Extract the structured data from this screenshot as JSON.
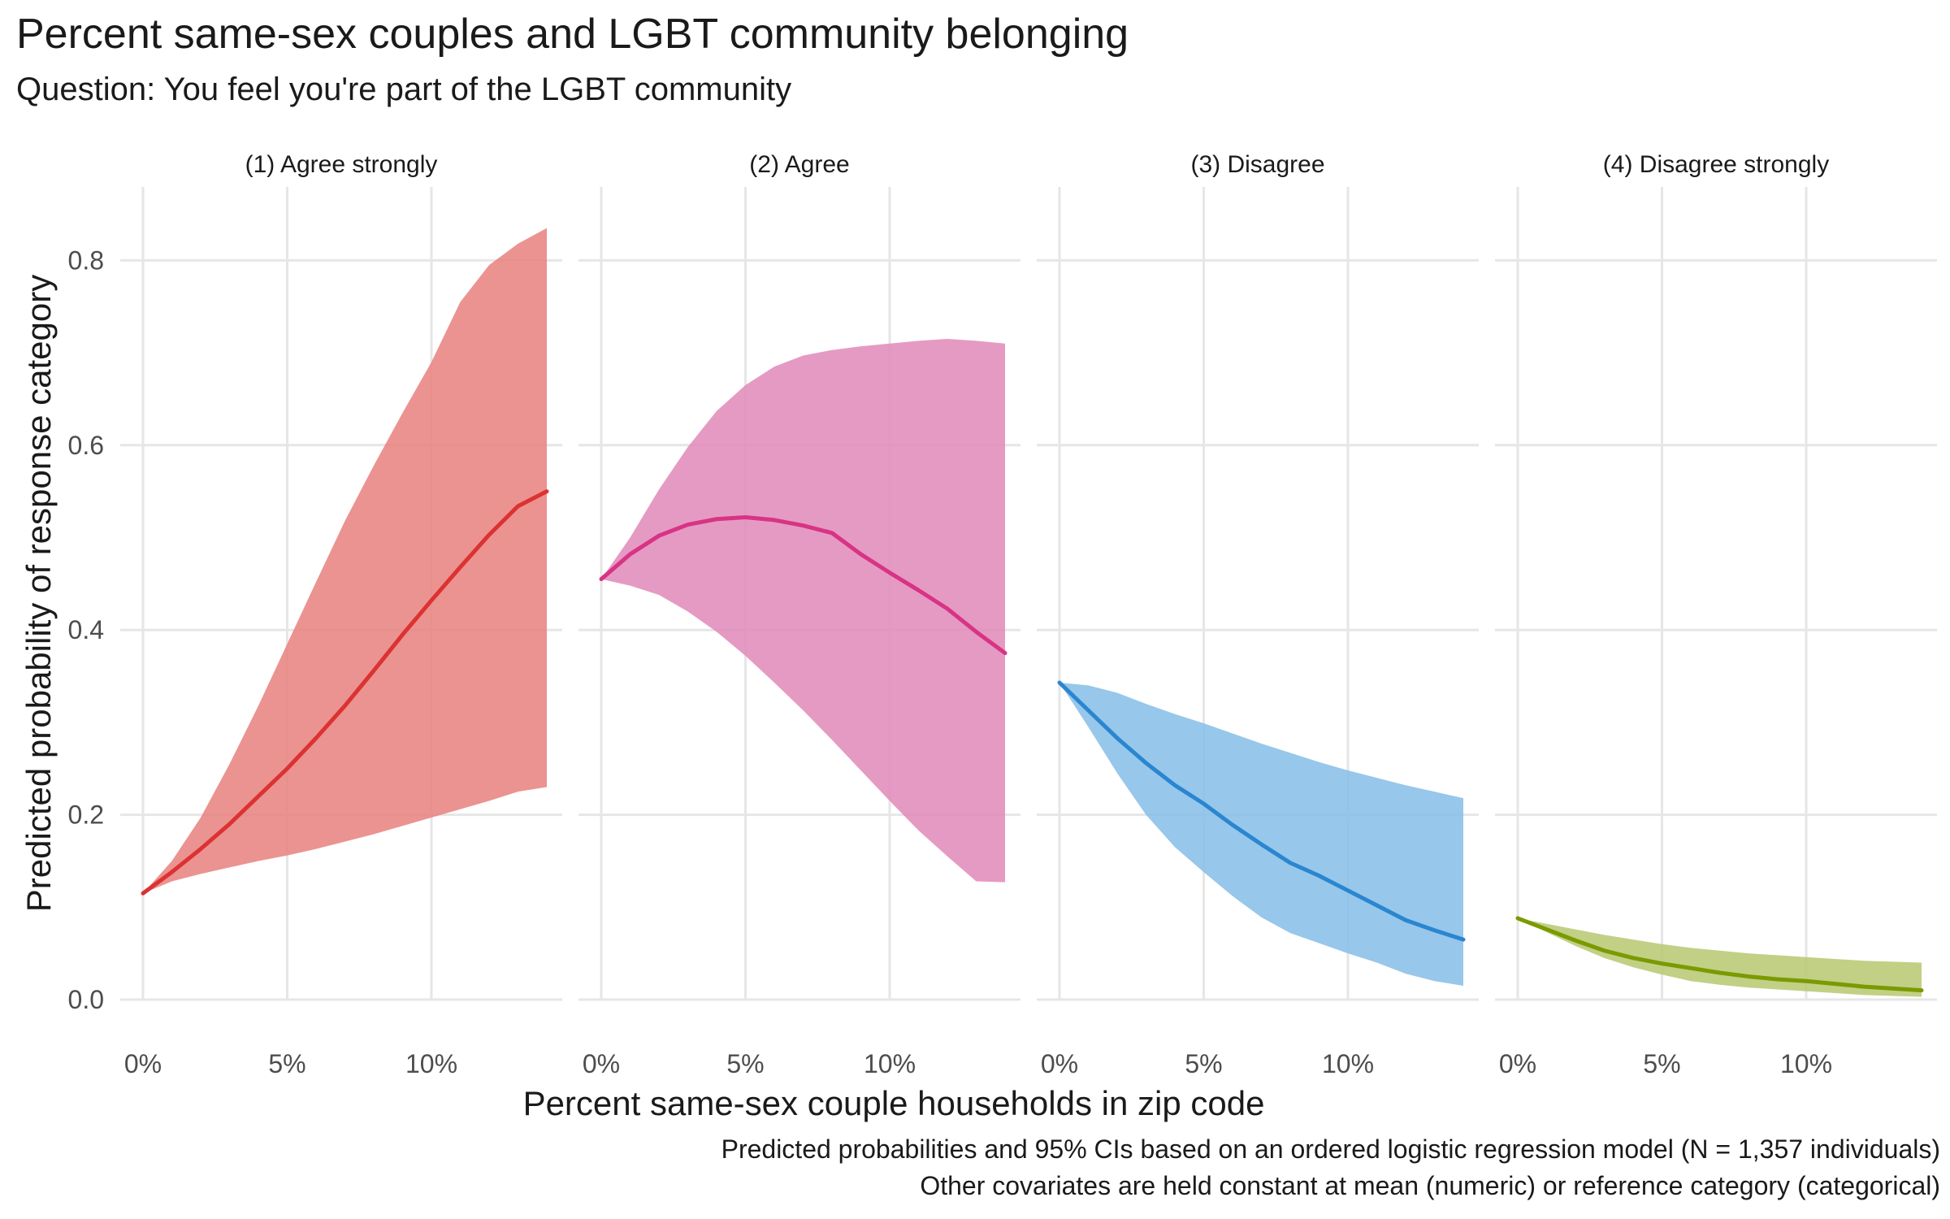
{
  "title": "Percent same-sex couples and LGBT community belonging",
  "subtitle": "Question: You feel you're part of the LGBT community",
  "caption": {
    "line1": "Predicted probabilities and 95% CIs based on an ordered logistic regression model (N = 1,357 individuals)",
    "line2": "Other covariates are held constant at mean (numeric) or reference category (categorical)"
  },
  "chart_data": {
    "type": "line",
    "subtype": "faceted line with confidence ribbons",
    "xlabel": "Percent same-sex couple households in zip code",
    "ylabel": "Predicted probability of response category",
    "xlim": [
      0,
      14
    ],
    "ylim": [
      0,
      0.85
    ],
    "x_ticks": [
      0,
      5,
      10
    ],
    "x_tick_labels": [
      "0%",
      "5%",
      "10%"
    ],
    "y_ticks": [
      0.0,
      0.2,
      0.4,
      0.6,
      0.8
    ],
    "y_tick_labels": [
      "0.0",
      "0.2",
      "0.4",
      "0.6",
      "0.8"
    ],
    "grid": true,
    "legend": "none",
    "facets": [
      {
        "label": "(1) Agree strongly",
        "line_color": "#dc3232",
        "band_color": "#e8807e",
        "x": [
          0,
          1,
          2,
          3,
          4,
          5,
          6,
          7,
          8,
          9,
          10,
          11,
          12,
          13,
          14
        ],
        "y": [
          0.115,
          0.138,
          0.163,
          0.19,
          0.22,
          0.25,
          0.283,
          0.318,
          0.356,
          0.395,
          0.432,
          0.468,
          0.503,
          0.534,
          0.55
        ],
        "lower": [
          0.115,
          0.128,
          0.136,
          0.143,
          0.15,
          0.156,
          0.163,
          0.171,
          0.179,
          0.188,
          0.197,
          0.206,
          0.215,
          0.225,
          0.23
        ],
        "upper": [
          0.115,
          0.15,
          0.197,
          0.255,
          0.318,
          0.385,
          0.452,
          0.518,
          0.578,
          0.635,
          0.69,
          0.755,
          0.795,
          0.818,
          0.835
        ]
      },
      {
        "label": "(2) Agree",
        "line_color": "#d83384",
        "band_color": "#e088b8",
        "x": [
          0,
          1,
          2,
          3,
          4,
          5,
          6,
          7,
          8,
          9,
          10,
          11,
          12,
          13,
          14
        ],
        "y": [
          0.455,
          0.482,
          0.502,
          0.514,
          0.52,
          0.522,
          0.519,
          0.513,
          0.505,
          0.482,
          0.462,
          0.443,
          0.423,
          0.398,
          0.375
        ],
        "lower": [
          0.455,
          0.448,
          0.438,
          0.42,
          0.398,
          0.372,
          0.343,
          0.313,
          0.281,
          0.248,
          0.215,
          0.183,
          0.155,
          0.128,
          0.127
        ],
        "upper": [
          0.455,
          0.5,
          0.552,
          0.598,
          0.637,
          0.665,
          0.685,
          0.697,
          0.703,
          0.707,
          0.71,
          0.713,
          0.715,
          0.713,
          0.71
        ]
      },
      {
        "label": "(3) Disagree",
        "line_color": "#2a86d0",
        "band_color": "#85bde6",
        "x": [
          0,
          1,
          2,
          3,
          4,
          5,
          6,
          7,
          8,
          9,
          10,
          11,
          12,
          13,
          14
        ],
        "y": [
          0.343,
          0.313,
          0.283,
          0.256,
          0.232,
          0.212,
          0.189,
          0.168,
          0.148,
          0.134,
          0.118,
          0.102,
          0.086,
          0.075,
          0.065
        ],
        "lower": [
          0.343,
          0.295,
          0.245,
          0.2,
          0.165,
          0.138,
          0.112,
          0.089,
          0.072,
          0.061,
          0.05,
          0.04,
          0.028,
          0.02,
          0.015
        ],
        "upper": [
          0.343,
          0.34,
          0.332,
          0.32,
          0.309,
          0.299,
          0.288,
          0.277,
          0.267,
          0.257,
          0.248,
          0.24,
          0.232,
          0.225,
          0.218
        ]
      },
      {
        "label": "(4) Disagree strongly",
        "line_color": "#7a9a00",
        "band_color": "#b6c870",
        "x": [
          0,
          1,
          2,
          3,
          4,
          5,
          6,
          7,
          8,
          9,
          10,
          11,
          12,
          13,
          14
        ],
        "y": [
          0.088,
          0.076,
          0.064,
          0.053,
          0.045,
          0.039,
          0.034,
          0.029,
          0.025,
          0.022,
          0.02,
          0.017,
          0.014,
          0.012,
          0.01
        ],
        "lower": [
          0.088,
          0.073,
          0.058,
          0.045,
          0.035,
          0.027,
          0.02,
          0.016,
          0.013,
          0.011,
          0.009,
          0.007,
          0.005,
          0.004,
          0.003
        ],
        "upper": [
          0.088,
          0.082,
          0.076,
          0.07,
          0.065,
          0.06,
          0.056,
          0.053,
          0.05,
          0.048,
          0.046,
          0.044,
          0.042,
          0.041,
          0.04
        ]
      }
    ]
  }
}
